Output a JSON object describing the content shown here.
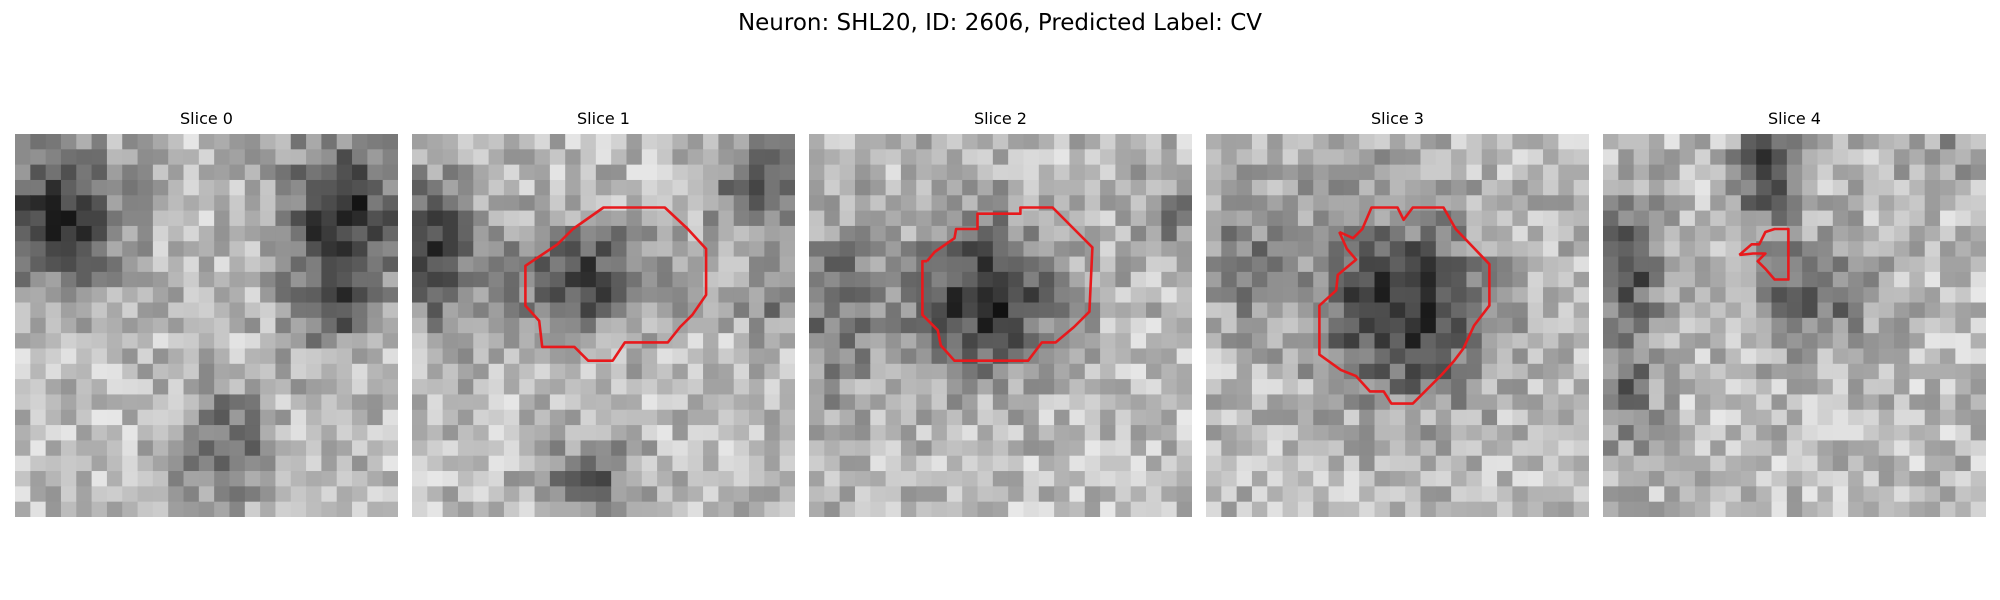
{
  "figure": {
    "title": "Neuron: SHL20, ID: 2606, Predicted Label: CV"
  },
  "panels": [
    {
      "title": "Slice 0",
      "has_contour": false
    },
    {
      "title": "Slice 1",
      "has_contour": true
    },
    {
      "title": "Slice 2",
      "has_contour": true
    },
    {
      "title": "Slice 3",
      "has_contour": true
    },
    {
      "title": "Slice 4",
      "has_contour": true
    }
  ],
  "colors": {
    "contour": "#e8191c",
    "background": "#ffffff",
    "image_dark": "#141414",
    "image_light": "#f4f4f4"
  },
  "colormap": "gray"
}
